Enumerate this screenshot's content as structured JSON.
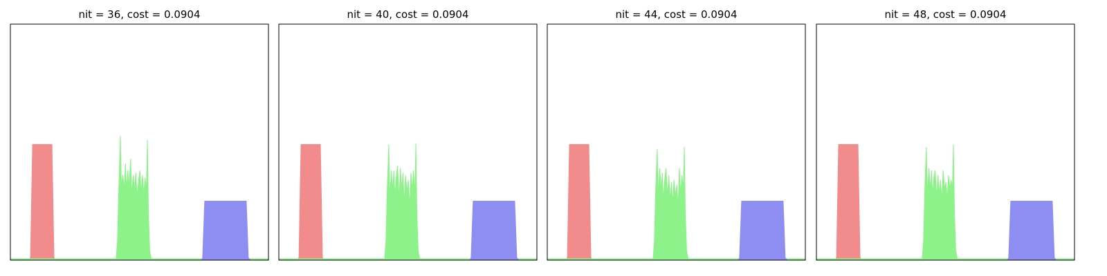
{
  "chart_data": [
    {
      "type": "area",
      "title": "nit = 36, cost = 0.0904",
      "xlim": [
        0,
        1
      ],
      "ylim": [
        0,
        1
      ],
      "series": [
        {
          "color": "#f28b8b",
          "x": [
            0.07,
            0.078,
            0.086,
            0.161,
            0.169,
            0.178
          ],
          "values": [
            0,
            0.01,
            0.49,
            0.49,
            0.01,
            0
          ]
        },
        {
          "color": "#8ef28b",
          "x": [
            0,
            0.41,
            0.415,
            0.42,
            0.426,
            0.43,
            0.436,
            0.441,
            0.446,
            0.45,
            0.455,
            0.46,
            0.466,
            0.471,
            0.476,
            0.481,
            0.486,
            0.491,
            0.497,
            0.502,
            0.507,
            0.512,
            0.517,
            0.522,
            0.527,
            0.531,
            0.535,
            0.54,
            0.546,
            1
          ],
          "values": [
            0.006,
            0.006,
            0.08,
            0.3,
            0.526,
            0.32,
            0.36,
            0.3,
            0.41,
            0.3,
            0.38,
            0.31,
            0.43,
            0.28,
            0.36,
            0.3,
            0.37,
            0.27,
            0.34,
            0.38,
            0.29,
            0.36,
            0.28,
            0.35,
            0.3,
            0.51,
            0.2,
            0.04,
            0.006,
            0.006
          ]
        },
        {
          "color": "#8e8ef2",
          "x": [
            0.74,
            0.745,
            0.753,
            0.914,
            0.922,
            0.93
          ],
          "values": [
            0,
            0.01,
            0.25,
            0.25,
            0.01,
            0
          ]
        }
      ]
    },
    {
      "type": "area",
      "title": "nit = 40, cost = 0.0904",
      "xlim": [
        0,
        1
      ],
      "ylim": [
        0,
        1
      ],
      "series": [
        {
          "color": "#f28b8b",
          "x": [
            0.07,
            0.078,
            0.086,
            0.161,
            0.169,
            0.178
          ],
          "values": [
            0,
            0.01,
            0.49,
            0.49,
            0.01,
            0
          ]
        },
        {
          "color": "#8ef28b",
          "x": [
            0,
            0.41,
            0.415,
            0.42,
            0.426,
            0.43,
            0.436,
            0.441,
            0.446,
            0.45,
            0.455,
            0.46,
            0.466,
            0.471,
            0.476,
            0.481,
            0.486,
            0.491,
            0.497,
            0.502,
            0.507,
            0.512,
            0.517,
            0.522,
            0.527,
            0.531,
            0.535,
            0.54,
            0.546,
            1
          ],
          "values": [
            0.006,
            0.006,
            0.08,
            0.3,
            0.49,
            0.26,
            0.38,
            0.3,
            0.38,
            0.27,
            0.35,
            0.4,
            0.26,
            0.39,
            0.3,
            0.37,
            0.24,
            0.36,
            0.29,
            0.34,
            0.22,
            0.37,
            0.3,
            0.38,
            0.28,
            0.495,
            0.2,
            0.04,
            0.006,
            0.006
          ]
        },
        {
          "color": "#8e8ef2",
          "x": [
            0.74,
            0.745,
            0.753,
            0.914,
            0.922,
            0.93
          ],
          "values": [
            0,
            0.01,
            0.25,
            0.25,
            0.01,
            0
          ]
        }
      ]
    },
    {
      "type": "area",
      "title": "nit = 44, cost = 0.0904",
      "xlim": [
        0,
        1
      ],
      "ylim": [
        0,
        1
      ],
      "series": [
        {
          "color": "#f28b8b",
          "x": [
            0.07,
            0.078,
            0.086,
            0.161,
            0.169,
            0.178
          ],
          "values": [
            0,
            0.01,
            0.49,
            0.49,
            0.01,
            0
          ]
        },
        {
          "color": "#8ef28b",
          "x": [
            0,
            0.41,
            0.415,
            0.42,
            0.426,
            0.43,
            0.436,
            0.441,
            0.446,
            0.45,
            0.455,
            0.46,
            0.466,
            0.471,
            0.476,
            0.481,
            0.486,
            0.491,
            0.497,
            0.502,
            0.507,
            0.512,
            0.517,
            0.522,
            0.527,
            0.531,
            0.535,
            0.54,
            0.546,
            1
          ],
          "values": [
            0.006,
            0.006,
            0.08,
            0.3,
            0.47,
            0.28,
            0.39,
            0.3,
            0.37,
            0.25,
            0.34,
            0.39,
            0.27,
            0.36,
            0.25,
            0.33,
            0.24,
            0.34,
            0.27,
            0.32,
            0.23,
            0.39,
            0.28,
            0.36,
            0.3,
            0.48,
            0.2,
            0.04,
            0.006,
            0.006
          ]
        },
        {
          "color": "#8e8ef2",
          "x": [
            0.74,
            0.745,
            0.753,
            0.914,
            0.922,
            0.93
          ],
          "values": [
            0,
            0.01,
            0.25,
            0.25,
            0.01,
            0
          ]
        }
      ]
    },
    {
      "type": "area",
      "title": "nit = 48, cost = 0.0904",
      "xlim": [
        0,
        1
      ],
      "ylim": [
        0,
        1
      ],
      "series": [
        {
          "color": "#f28b8b",
          "x": [
            0.07,
            0.078,
            0.086,
            0.161,
            0.169,
            0.178
          ],
          "values": [
            0,
            0.01,
            0.49,
            0.49,
            0.01,
            0
          ]
        },
        {
          "color": "#8ef28b",
          "x": [
            0,
            0.41,
            0.415,
            0.42,
            0.426,
            0.43,
            0.436,
            0.441,
            0.446,
            0.45,
            0.455,
            0.46,
            0.466,
            0.471,
            0.476,
            0.481,
            0.486,
            0.491,
            0.497,
            0.502,
            0.507,
            0.512,
            0.517,
            0.522,
            0.527,
            0.531,
            0.535,
            0.54,
            0.546,
            1
          ],
          "values": [
            0.006,
            0.006,
            0.08,
            0.3,
            0.48,
            0.28,
            0.39,
            0.3,
            0.38,
            0.28,
            0.35,
            0.38,
            0.27,
            0.36,
            0.28,
            0.34,
            0.25,
            0.38,
            0.3,
            0.33,
            0.26,
            0.36,
            0.3,
            0.34,
            0.3,
            0.49,
            0.2,
            0.04,
            0.006,
            0.006
          ]
        },
        {
          "color": "#8e8ef2",
          "x": [
            0.74,
            0.745,
            0.753,
            0.914,
            0.922,
            0.93
          ],
          "values": [
            0,
            0.01,
            0.25,
            0.25,
            0.01,
            0
          ]
        }
      ]
    }
  ]
}
